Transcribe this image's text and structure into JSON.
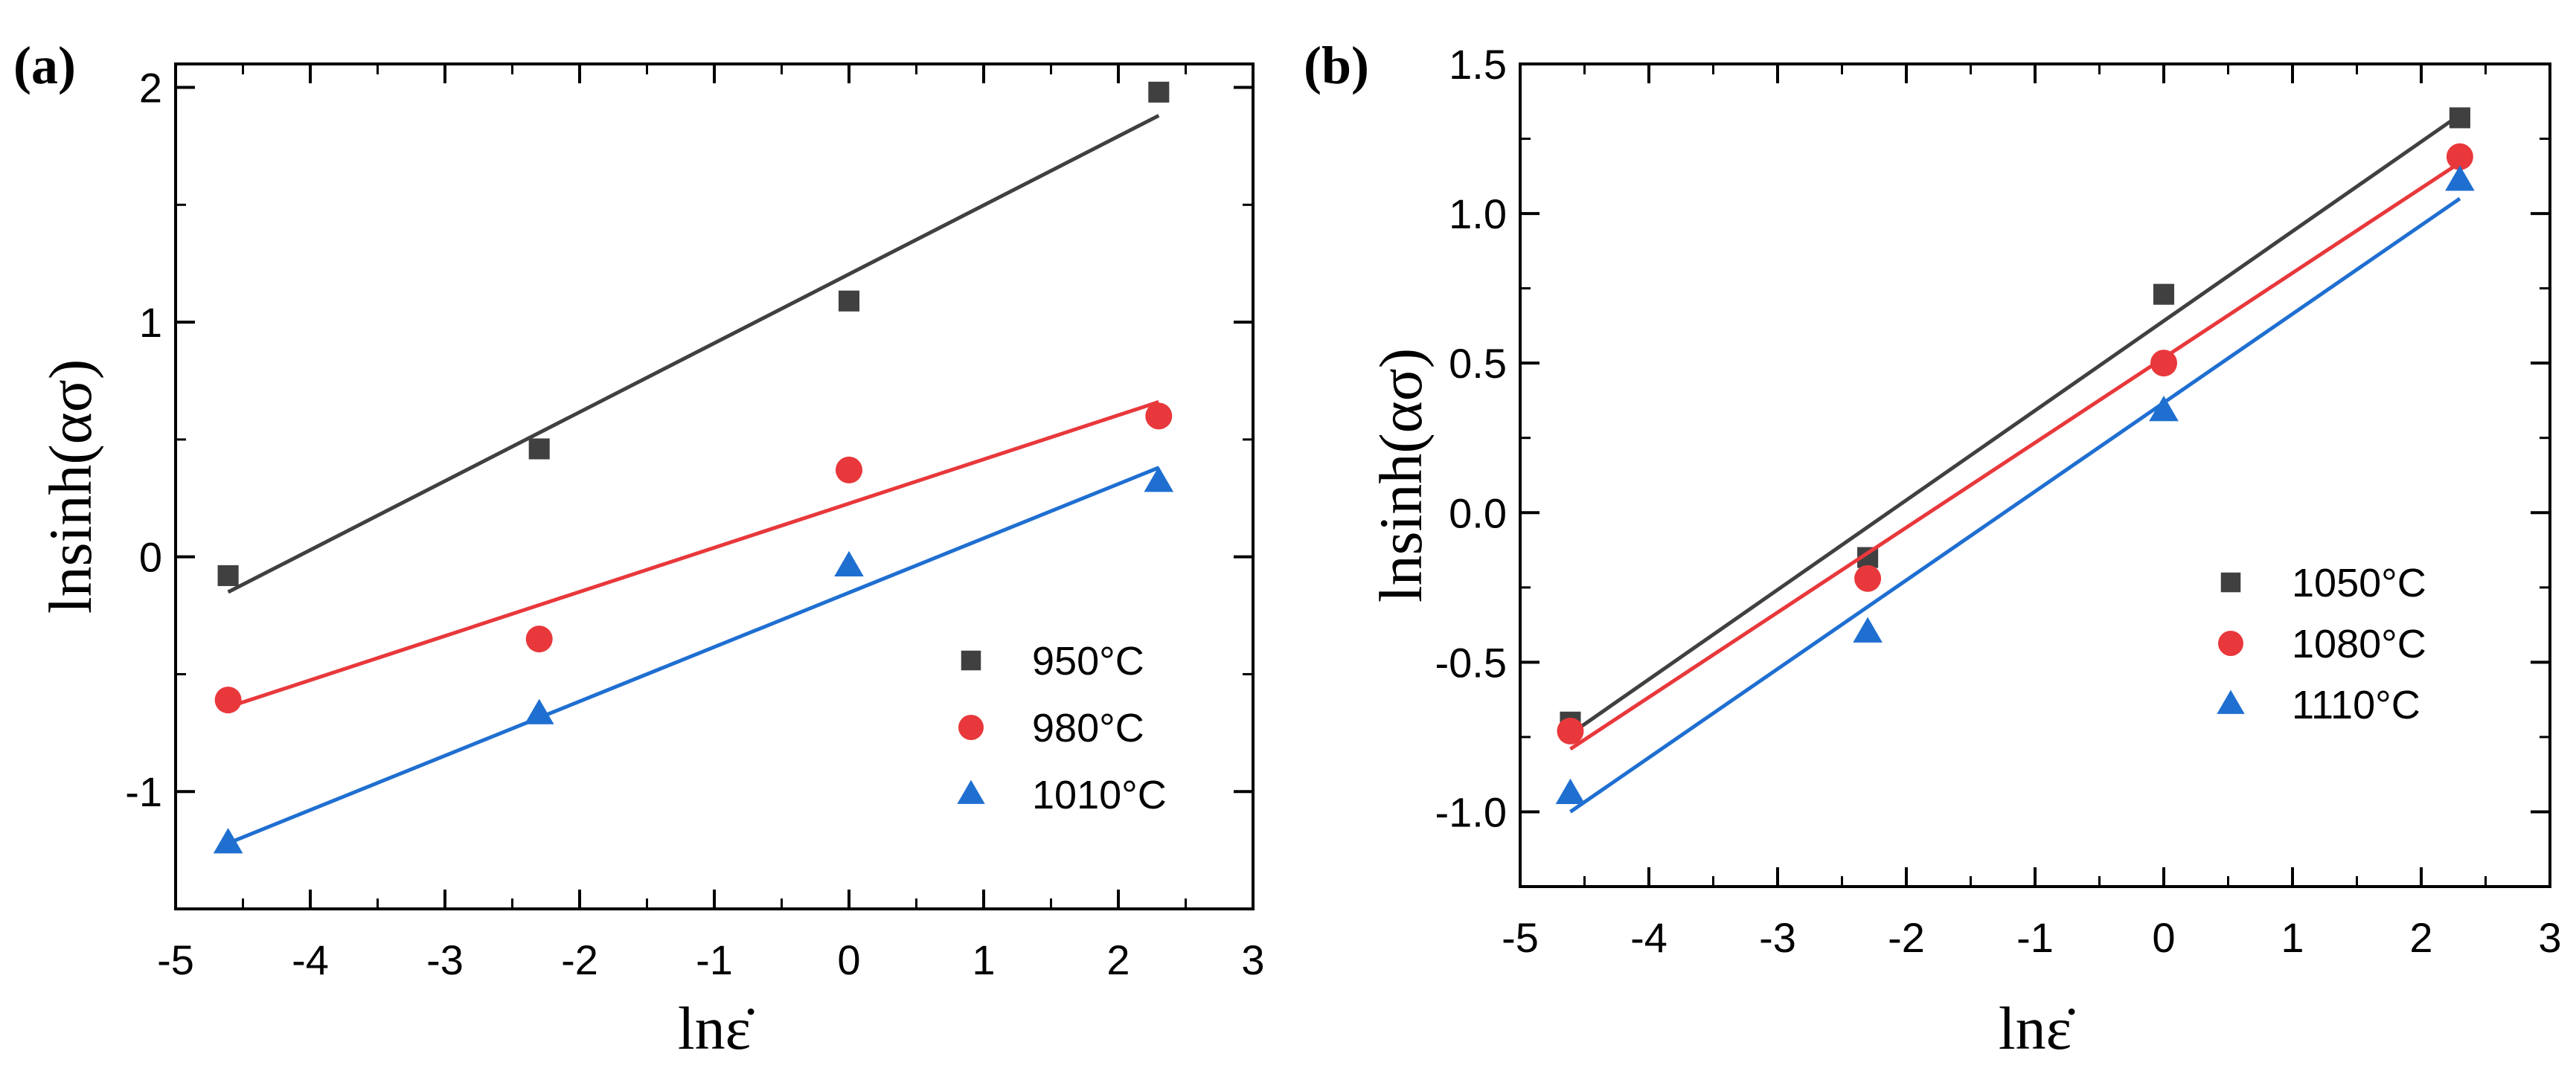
{
  "chart_data": [
    {
      "type": "scatter",
      "panel_label": "(a)",
      "xlabel": "lnε̇",
      "ylabel": "lnsinh(ασ)",
      "xlim": [
        -5,
        3
      ],
      "ylim": [
        -1.5,
        2.1
      ],
      "xticks": [
        "-5",
        "-4",
        "-3",
        "-2",
        "-1",
        "0",
        "1",
        "2",
        "3"
      ],
      "yticks": [
        "-1",
        "0",
        "1",
        "2"
      ],
      "legend_position": "lower-right",
      "series": [
        {
          "name": "950°C",
          "marker": "square",
          "color": "#404040",
          "x": [
            -4.61,
            -2.3,
            0.0,
            2.3
          ],
          "y": [
            -0.08,
            0.46,
            1.09,
            1.98
          ],
          "fit": {
            "x": [
              -4.61,
              2.3
            ],
            "y": [
              -0.15,
              1.88
            ]
          }
        },
        {
          "name": "980°C",
          "marker": "circle",
          "color": "#e8383b",
          "x": [
            -4.61,
            -2.3,
            0.0,
            2.3
          ],
          "y": [
            -0.61,
            -0.35,
            0.37,
            0.6
          ],
          "fit": {
            "x": [
              -4.61,
              2.3
            ],
            "y": [
              -0.64,
              0.66
            ]
          }
        },
        {
          "name": "1010°C",
          "marker": "triangle",
          "color": "#1f6fd1",
          "x": [
            -4.61,
            -2.3,
            0.0,
            2.3
          ],
          "y": [
            -1.22,
            -0.67,
            -0.04,
            0.32
          ],
          "fit": {
            "x": [
              -4.61,
              2.3
            ],
            "y": [
              -1.22,
              0.38
            ]
          }
        }
      ]
    },
    {
      "type": "scatter",
      "panel_label": "(b)",
      "xlabel": "lnε̇",
      "ylabel": "lnsinh(ασ)",
      "xlim": [
        -5,
        3
      ],
      "ylim": [
        -1.25,
        1.5
      ],
      "xticks": [
        "-5",
        "-4",
        "-3",
        "-2",
        "-1",
        "0",
        "1",
        "2",
        "3"
      ],
      "yticks": [
        "-1.0",
        "-0.5",
        "0.0",
        "0.5",
        "1.0",
        "1.5"
      ],
      "legend_position": "right",
      "series": [
        {
          "name": "1050°C",
          "marker": "square",
          "color": "#404040",
          "x": [
            -4.61,
            -2.3,
            0.0,
            2.3
          ],
          "y": [
            -0.7,
            -0.15,
            0.73,
            1.32
          ],
          "fit": {
            "x": [
              -4.61,
              2.3
            ],
            "y": [
              -0.74,
              1.33
            ]
          }
        },
        {
          "name": "1080°C",
          "marker": "circle",
          "color": "#e8383b",
          "x": [
            -4.61,
            -2.3,
            0.0,
            2.3
          ],
          "y": [
            -0.73,
            -0.22,
            0.5,
            1.19
          ],
          "fit": {
            "x": [
              -4.61,
              2.3
            ],
            "y": [
              -0.79,
              1.17
            ]
          }
        },
        {
          "name": "1110°C",
          "marker": "triangle",
          "color": "#1f6fd1",
          "x": [
            -4.61,
            -2.3,
            0.0,
            2.3
          ],
          "y": [
            -0.94,
            -0.4,
            0.34,
            1.11
          ],
          "fit": {
            "x": [
              -4.61,
              2.3
            ],
            "y": [
              -1.0,
              1.05
            ]
          }
        }
      ]
    }
  ]
}
